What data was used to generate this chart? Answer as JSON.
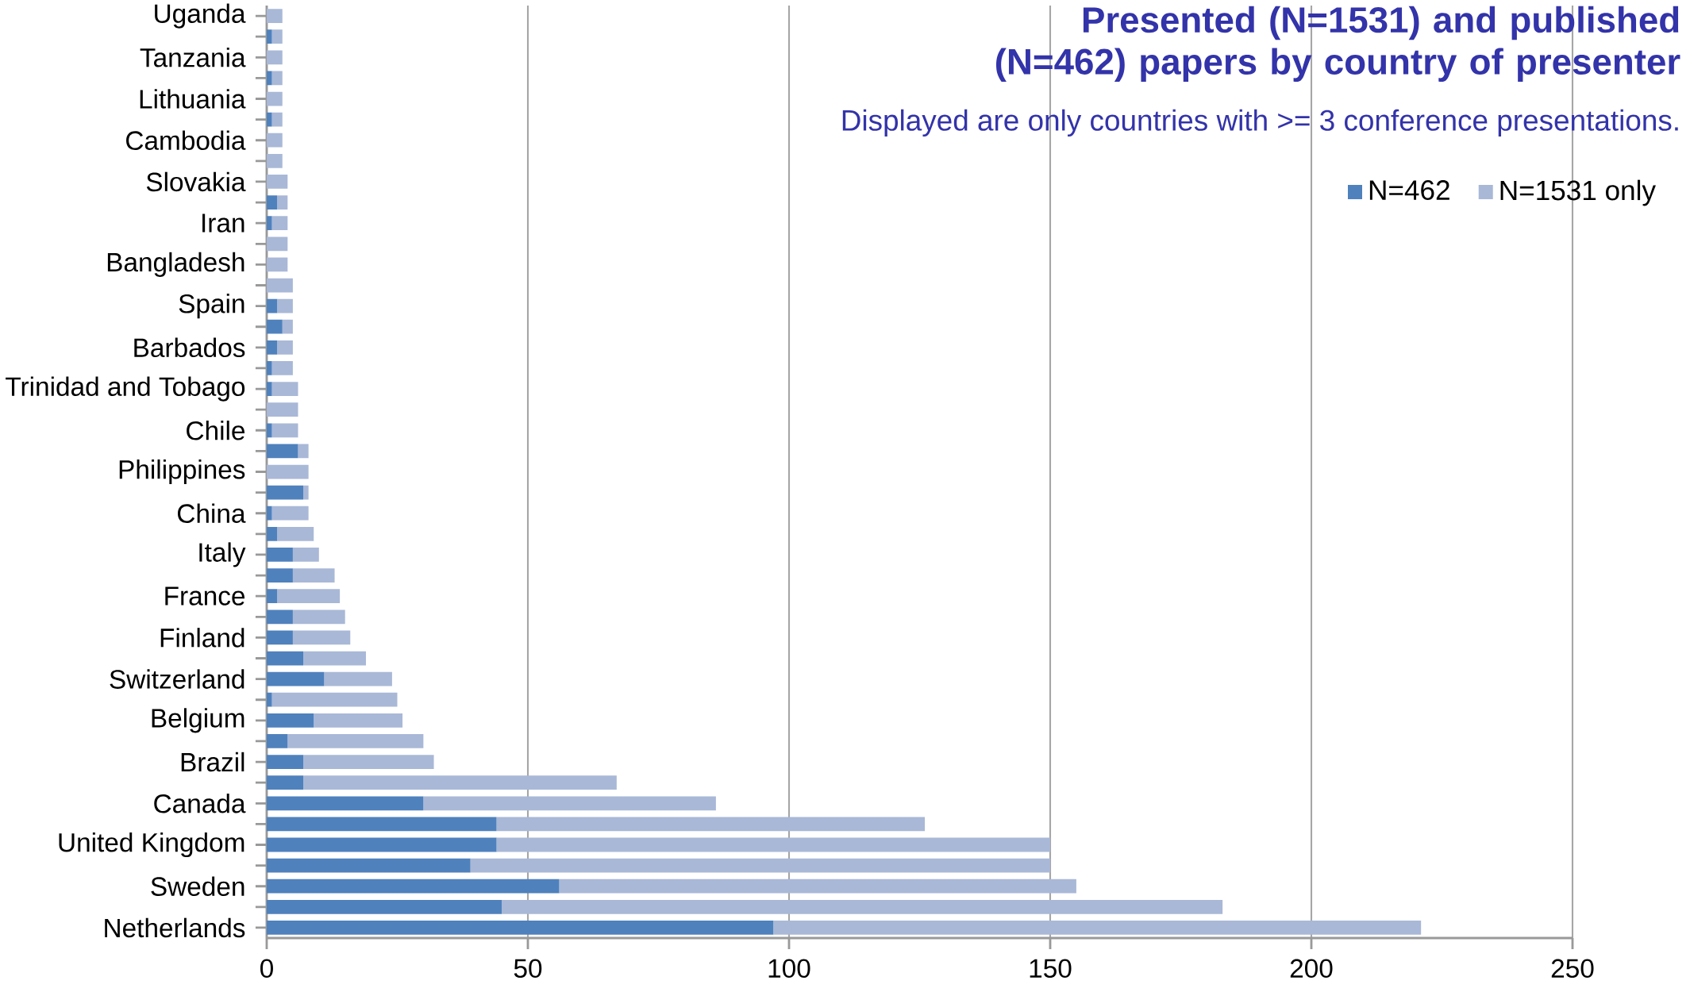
{
  "chart_data": {
    "type": "bar",
    "orientation": "horizontal",
    "stacked": true,
    "title": "Presented (N=1531) and published (N=462) papers by country of presenter",
    "subtitle": "Displayed are only countries with >= 3 conference presentations.",
    "categories": [
      "Uganda",
      null,
      "Tanzania",
      null,
      "Lithuania",
      null,
      "Cambodia",
      null,
      "Slovakia",
      null,
      "Iran",
      null,
      "Bangladesh",
      null,
      "Spain",
      null,
      "Barbados",
      null,
      "Trinidad and Tobago",
      null,
      "Chile",
      null,
      "Philippines",
      null,
      "China",
      null,
      "Italy",
      null,
      "France",
      null,
      "Finland",
      null,
      "Switzerland",
      null,
      "Belgium",
      null,
      "Brazil",
      null,
      "Canada",
      null,
      "United Kingdom",
      null,
      "Sweden",
      null,
      "Netherlands"
    ],
    "series": [
      {
        "name": "N=462",
        "color": "#4f81bd",
        "values": [
          0,
          1,
          0,
          1,
          0,
          1,
          0,
          0,
          0,
          2,
          1,
          0,
          0,
          0,
          2,
          3,
          2,
          1,
          1,
          0,
          1,
          6,
          0,
          7,
          1,
          2,
          5,
          5,
          2,
          5,
          5,
          7,
          11,
          1,
          9,
          4,
          7,
          7,
          30,
          44,
          44,
          39,
          56,
          45,
          97
        ]
      },
      {
        "name": "N=1531 only",
        "color": "#a9b8d7",
        "values": [
          3,
          2,
          3,
          2,
          3,
          2,
          3,
          3,
          4,
          2,
          3,
          4,
          4,
          5,
          3,
          2,
          3,
          4,
          5,
          6,
          5,
          2,
          8,
          1,
          7,
          7,
          5,
          8,
          12,
          10,
          11,
          12,
          13,
          24,
          17,
          26,
          25,
          60,
          56,
          82,
          106,
          111,
          99,
          138,
          124
        ]
      }
    ],
    "xlim": [
      0,
      250
    ],
    "xticks": [
      0,
      50,
      100,
      150,
      200,
      250
    ],
    "grid": "x",
    "legend": "top right"
  }
}
